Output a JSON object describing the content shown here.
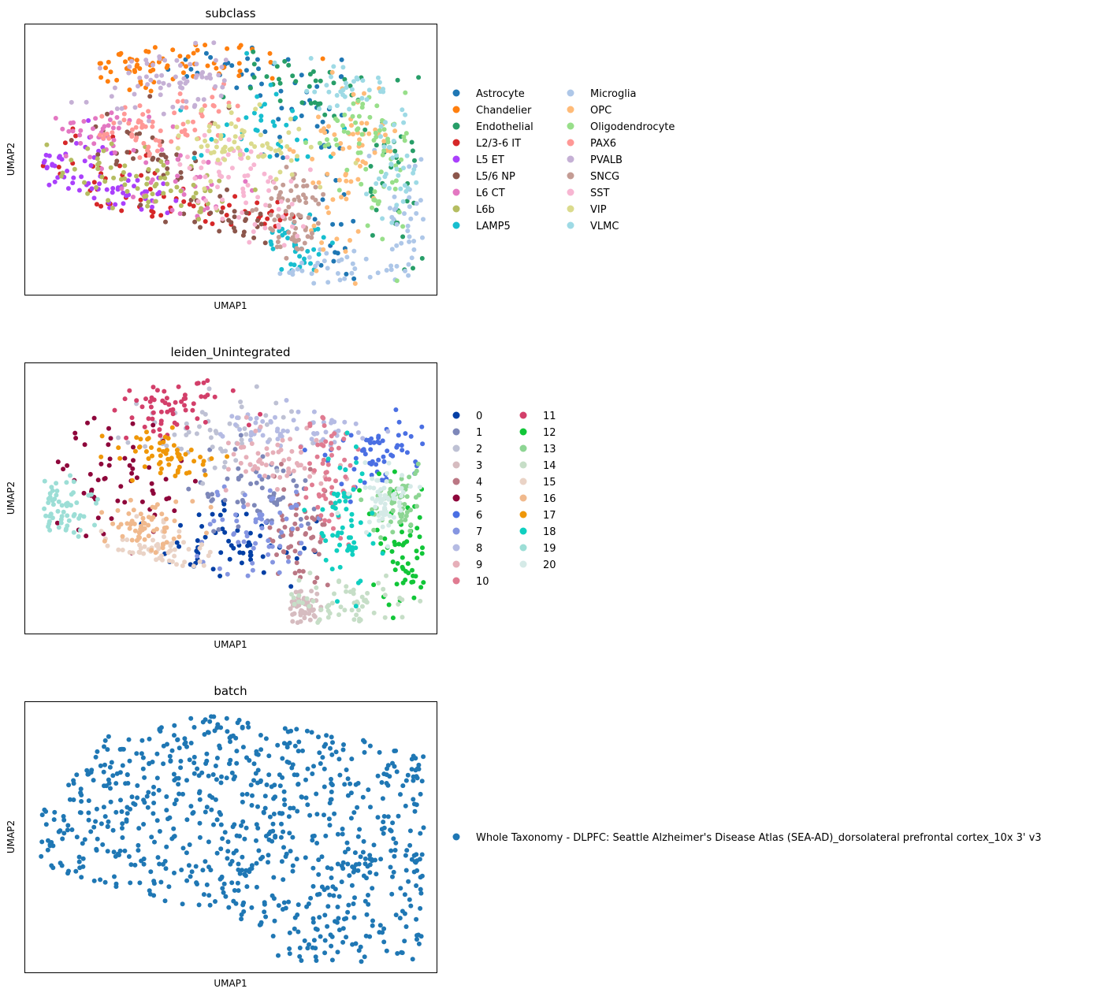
{
  "chart_data": [
    {
      "type": "scatter",
      "title": "subclass",
      "xlabel": "UMAP1",
      "ylabel": "UMAP2",
      "xticks": [],
      "yticks": [],
      "grid": false,
      "legend_placement": "right of plot, two columns",
      "series": [
        {
          "name": "Astrocyte",
          "color": "#1f77b4",
          "region": "right-upper band and right arc"
        },
        {
          "name": "Chandelier",
          "color": "#ff7f0e",
          "region": "top crest"
        },
        {
          "name": "Endothelial",
          "color": "#279e68",
          "region": "right outer edge"
        },
        {
          "name": "L2/3-6 IT",
          "color": "#d62728",
          "region": "lower-left"
        },
        {
          "name": "L5 ET",
          "color": "#aa40fc",
          "region": "far left tip"
        },
        {
          "name": "L5/6 NP",
          "color": "#8c564b",
          "region": "left-center strands"
        },
        {
          "name": "L6 CT",
          "color": "#e377c2",
          "region": "left-center"
        },
        {
          "name": "L6b",
          "color": "#b5bd61",
          "region": "left-center lower"
        },
        {
          "name": "LAMP5",
          "color": "#17becf",
          "region": "upper middle"
        },
        {
          "name": "Microglia",
          "color": "#aec7e8",
          "region": "bottom right"
        },
        {
          "name": "OPC",
          "color": "#ffbb78",
          "region": "right-center"
        },
        {
          "name": "Oligodendrocyte",
          "color": "#98df8a",
          "region": "right"
        },
        {
          "name": "PAX6",
          "color": "#ff9896",
          "region": "upper left-center"
        },
        {
          "name": "PVALB",
          "color": "#c5b0d5",
          "region": "top"
        },
        {
          "name": "SNCG",
          "color": "#c49c94",
          "region": "center-right lower"
        },
        {
          "name": "SST",
          "color": "#f7b6d2",
          "region": "center"
        },
        {
          "name": "VIP",
          "color": "#dbdb8d",
          "region": "center"
        },
        {
          "name": "VLMC",
          "color": "#9edae5",
          "region": "right"
        }
      ]
    },
    {
      "type": "scatter",
      "title": "leiden_Unintegrated",
      "xlabel": "UMAP1",
      "ylabel": "UMAP2",
      "xticks": [],
      "yticks": [],
      "grid": false,
      "legend_placement": "right of plot, two columns",
      "series": [
        {
          "name": "0",
          "color": "#023fa5",
          "region": "lower middle diagonal band"
        },
        {
          "name": "1",
          "color": "#7d87b9",
          "region": "center"
        },
        {
          "name": "2",
          "color": "#bec1d4",
          "region": "upper center"
        },
        {
          "name": "3",
          "color": "#d6bcc0",
          "region": "bottom center small"
        },
        {
          "name": "4",
          "color": "#bb7784",
          "region": "center right lower"
        },
        {
          "name": "5",
          "color": "#8e063b",
          "region": "left"
        },
        {
          "name": "6",
          "color": "#4a6fe3",
          "region": "upper right"
        },
        {
          "name": "7",
          "color": "#8595e1",
          "region": "center lower"
        },
        {
          "name": "8",
          "color": "#b5bbe3",
          "region": "top right of center"
        },
        {
          "name": "9",
          "color": "#e6afb9",
          "region": "upper center right"
        },
        {
          "name": "10",
          "color": "#e07b91",
          "region": "right-center strand"
        },
        {
          "name": "11",
          "color": "#d33f6a",
          "region": "top left crest"
        },
        {
          "name": "12",
          "color": "#11c638",
          "region": "far right lower"
        },
        {
          "name": "13",
          "color": "#8dd593",
          "region": "far right middle"
        },
        {
          "name": "14",
          "color": "#c6dec7",
          "region": "bottom right"
        },
        {
          "name": "15",
          "color": "#ead3c6",
          "region": "lower left"
        },
        {
          "name": "16",
          "color": "#f0b98d",
          "region": "lower left-center"
        },
        {
          "name": "17",
          "color": "#ef9708",
          "region": "upper left-center"
        },
        {
          "name": "18",
          "color": "#0fcfc0",
          "region": "right-center"
        },
        {
          "name": "19",
          "color": "#9cded6",
          "region": "far left tip"
        },
        {
          "name": "20",
          "color": "#d5eae7",
          "region": "right"
        }
      ]
    },
    {
      "type": "scatter",
      "title": "batch",
      "xlabel": "UMAP1",
      "ylabel": "UMAP2",
      "xticks": [],
      "yticks": [],
      "grid": false,
      "legend_placement": "right of plot, one column",
      "series": [
        {
          "name": "Whole Taxonomy - DLPFC: Seattle Alzheimer's Disease Atlas (SEA-AD)_dorsolateral prefrontal cortex_10x 3' v3",
          "color": "#1f77b4",
          "region": "all"
        }
      ]
    }
  ]
}
